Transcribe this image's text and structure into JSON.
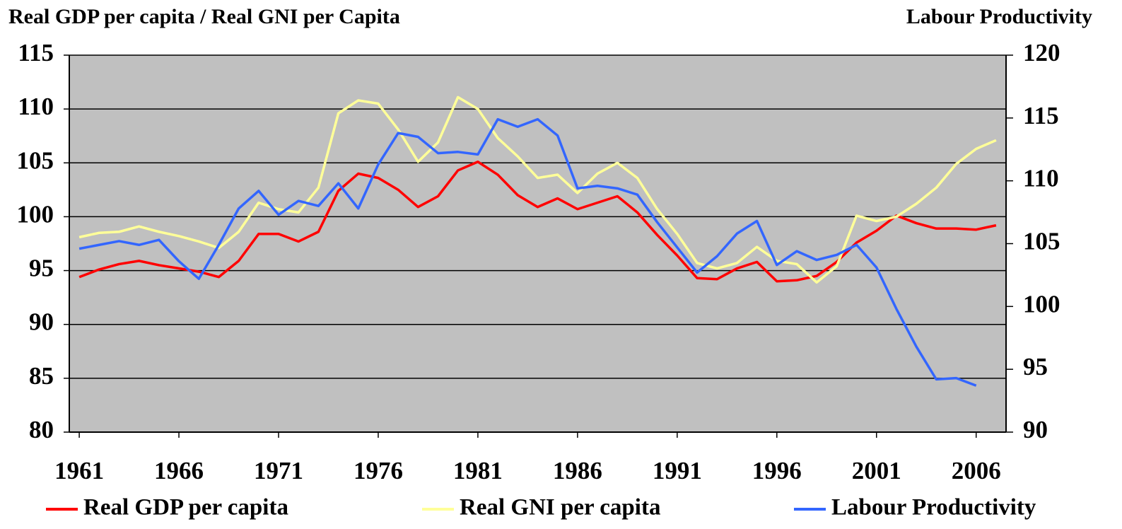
{
  "chart_data": {
    "type": "line",
    "title": "Real GDP per capita / Real GNI per Capita",
    "y2_title": "Labour Productivity",
    "x": [
      1961,
      1962,
      1963,
      1964,
      1965,
      1966,
      1967,
      1968,
      1969,
      1970,
      1971,
      1972,
      1973,
      1974,
      1975,
      1976,
      1977,
      1978,
      1979,
      1980,
      1981,
      1982,
      1983,
      1984,
      1985,
      1986,
      1987,
      1988,
      1989,
      1990,
      1991,
      1992,
      1993,
      1994,
      1995,
      1996,
      1997,
      1998,
      1999,
      2000,
      2001,
      2002,
      2003,
      2004,
      2005,
      2006,
      2007
    ],
    "xlim": [
      1960.5,
      2007.5
    ],
    "xticks": [
      1961,
      1966,
      1971,
      1976,
      1981,
      1986,
      1991,
      1996,
      2001,
      2006
    ],
    "ylim": [
      80,
      115
    ],
    "yticks": [
      80,
      85,
      90,
      95,
      100,
      105,
      110,
      115
    ],
    "y2lim": [
      90,
      120
    ],
    "y2ticks": [
      90,
      95,
      100,
      105,
      110,
      115,
      120
    ],
    "grid": true,
    "legend": "bottom",
    "background": "#c0c0c0",
    "series": [
      {
        "name": "Real GDP per capita",
        "color": "#ff0000",
        "values": [
          94.4,
          95.1,
          95.6,
          95.9,
          95.5,
          95.2,
          94.9,
          94.4,
          95.9,
          98.4,
          98.4,
          97.7,
          98.6,
          102.4,
          104.0,
          103.6,
          102.5,
          100.9,
          101.9,
          104.3,
          105.1,
          103.9,
          102.0,
          100.9,
          101.7,
          100.7,
          101.3,
          101.9,
          100.4,
          98.3,
          96.4,
          94.3,
          94.2,
          95.2,
          95.8,
          94.0,
          94.1,
          94.5,
          95.8,
          97.6,
          98.7,
          100.1,
          99.4,
          98.9,
          98.9,
          98.8,
          99.2
        ]
      },
      {
        "name": "Real GNI per capita",
        "color": "#ffff99",
        "values": [
          98.1,
          98.5,
          98.6,
          99.1,
          98.6,
          98.2,
          97.7,
          97.1,
          98.6,
          101.3,
          100.7,
          100.4,
          102.7,
          109.6,
          110.8,
          110.5,
          108.1,
          105.1,
          106.9,
          111.1,
          110.0,
          107.3,
          105.6,
          103.6,
          103.9,
          102.2,
          104.0,
          105.0,
          103.6,
          100.7,
          98.4,
          95.7,
          95.2,
          95.7,
          97.2,
          95.9,
          95.6,
          93.9,
          95.4,
          100.1,
          99.6,
          100.0,
          101.2,
          102.7,
          104.9,
          106.3,
          107.1
        ]
      },
      {
        "name": "Labour Productivity",
        "color": "#3366ff",
        "axis": "y2",
        "values": [
          104.6,
          104.9,
          105.2,
          104.9,
          105.3,
          103.6,
          102.2,
          104.9,
          107.8,
          109.2,
          107.3,
          108.4,
          108.0,
          109.8,
          107.8,
          111.3,
          113.8,
          113.5,
          112.2,
          112.3,
          112.1,
          114.9,
          114.3,
          114.9,
          113.6,
          109.4,
          109.6,
          109.4,
          108.9,
          106.7,
          104.7,
          102.7,
          104.0,
          105.8,
          106.8,
          103.3,
          104.4,
          103.7,
          104.1,
          104.9,
          103.1,
          99.8,
          96.8,
          94.2,
          94.3,
          93.7,
          null
        ]
      }
    ]
  }
}
